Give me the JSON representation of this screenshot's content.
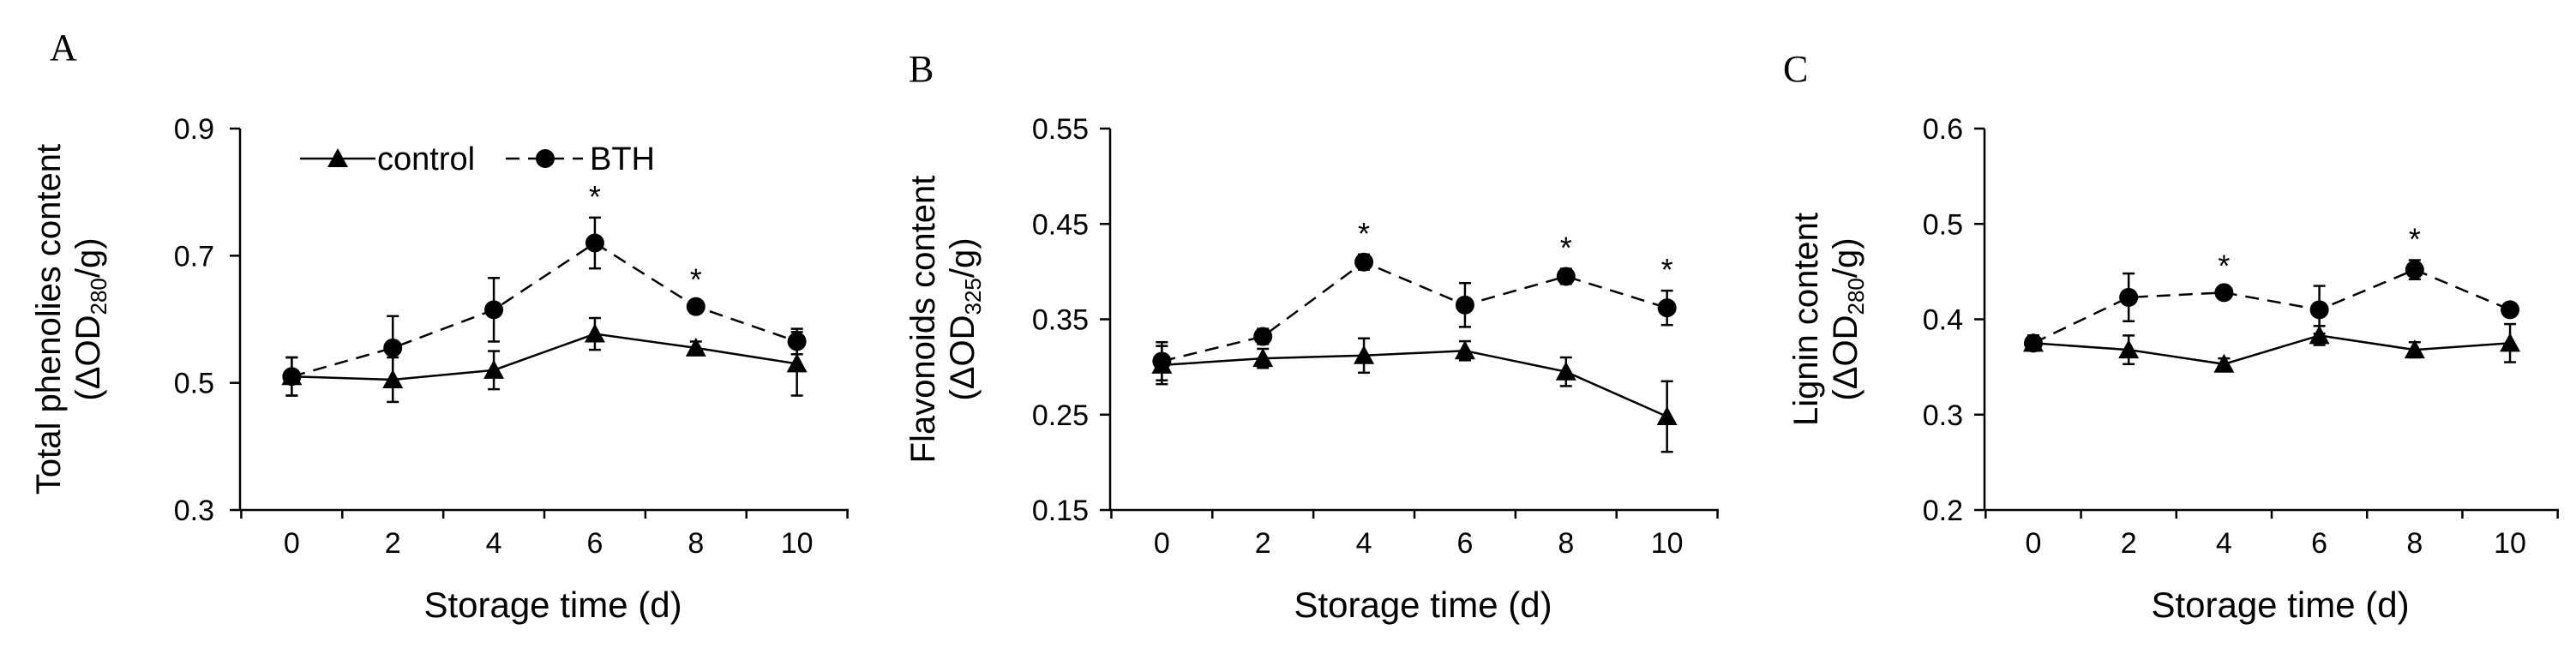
{
  "legend": {
    "control": "control",
    "bth": "BTH"
  },
  "chart_data": [
    {
      "panel": "A",
      "type": "line",
      "ylabel_main": "Total phenolies content",
      "ylabel_unit_pre": "(ΔOD",
      "ylabel_unit_sub": "280",
      "ylabel_unit_post": "/g)",
      "xlabel": "Storage time (d)",
      "x": [
        0,
        2,
        4,
        6,
        8,
        10
      ],
      "xticks": [
        "0",
        "2",
        "4",
        "6",
        "8",
        "10"
      ],
      "ylim": [
        0.3,
        0.9
      ],
      "yticks": [
        0.3,
        0.5,
        0.7,
        0.9
      ],
      "yticklabels": [
        "0.3",
        "0.5",
        "0.7",
        "0.9"
      ],
      "series": [
        {
          "name": "control",
          "values": [
            0.51,
            0.505,
            0.52,
            0.577,
            0.555,
            0.53
          ],
          "errors": [
            0.03,
            0.035,
            0.03,
            0.025,
            0.01,
            0.05
          ]
        },
        {
          "name": "BTH",
          "values": [
            0.51,
            0.555,
            0.615,
            0.72,
            0.62,
            0.565
          ],
          "errors": [
            0.03,
            0.05,
            0.05,
            0.04,
            0.01,
            0.02
          ]
        }
      ],
      "significance": [
        6,
        8
      ],
      "star": "*"
    },
    {
      "panel": "B",
      "type": "line",
      "ylabel_main": "Flavonoids content",
      "ylabel_unit_pre": "(ΔOD",
      "ylabel_unit_sub": "325",
      "ylabel_unit_post": "/g)",
      "xlabel": "Storage time (d)",
      "x": [
        0,
        2,
        4,
        6,
        8,
        10
      ],
      "xticks": [
        "0",
        "2",
        "4",
        "6",
        "8",
        "10"
      ],
      "ylim": [
        0.15,
        0.55
      ],
      "yticks": [
        0.15,
        0.25,
        0.35,
        0.45,
        0.55
      ],
      "yticklabels": [
        "0.15",
        "0.25",
        "0.35",
        "0.45",
        "0.55"
      ],
      "series": [
        {
          "name": "control",
          "values": [
            0.302,
            0.309,
            0.312,
            0.317,
            0.295,
            0.248
          ],
          "errors": [
            0.02,
            0.01,
            0.018,
            0.01,
            0.015,
            0.037
          ]
        },
        {
          "name": "BTH",
          "values": [
            0.306,
            0.332,
            0.41,
            0.365,
            0.395,
            0.362
          ],
          "errors": [
            0.02,
            0.008,
            0.008,
            0.023,
            0.008,
            0.018
          ]
        }
      ],
      "significance": [
        4,
        8,
        10
      ],
      "star": "*"
    },
    {
      "panel": "C",
      "type": "line",
      "ylabel_main": "Lignin content",
      "ylabel_unit_pre": "(ΔOD",
      "ylabel_unit_sub": "280",
      "ylabel_unit_post": "/g)",
      "xlabel": "Storage time (d)",
      "x": [
        0,
        2,
        4,
        6,
        8,
        10
      ],
      "xticks": [
        "0",
        "2",
        "4",
        "6",
        "8",
        "10"
      ],
      "ylim": [
        0.2,
        0.6
      ],
      "yticks": [
        0.2,
        0.3,
        0.4,
        0.5,
        0.6
      ],
      "yticklabels": [
        "0.2",
        "0.3",
        "0.4",
        "0.5",
        "0.6"
      ],
      "series": [
        {
          "name": "control",
          "values": [
            0.375,
            0.368,
            0.353,
            0.383,
            0.368,
            0.375
          ],
          "errors": [
            0.008,
            0.015,
            0.006,
            0.01,
            0.008,
            0.02
          ]
        },
        {
          "name": "BTH",
          "values": [
            0.375,
            0.423,
            0.428,
            0.41,
            0.452,
            0.41
          ],
          "errors": [
            0.008,
            0.025,
            0.006,
            0.025,
            0.01,
            0.006
          ]
        }
      ],
      "significance": [
        4,
        8
      ],
      "star": "*"
    }
  ]
}
